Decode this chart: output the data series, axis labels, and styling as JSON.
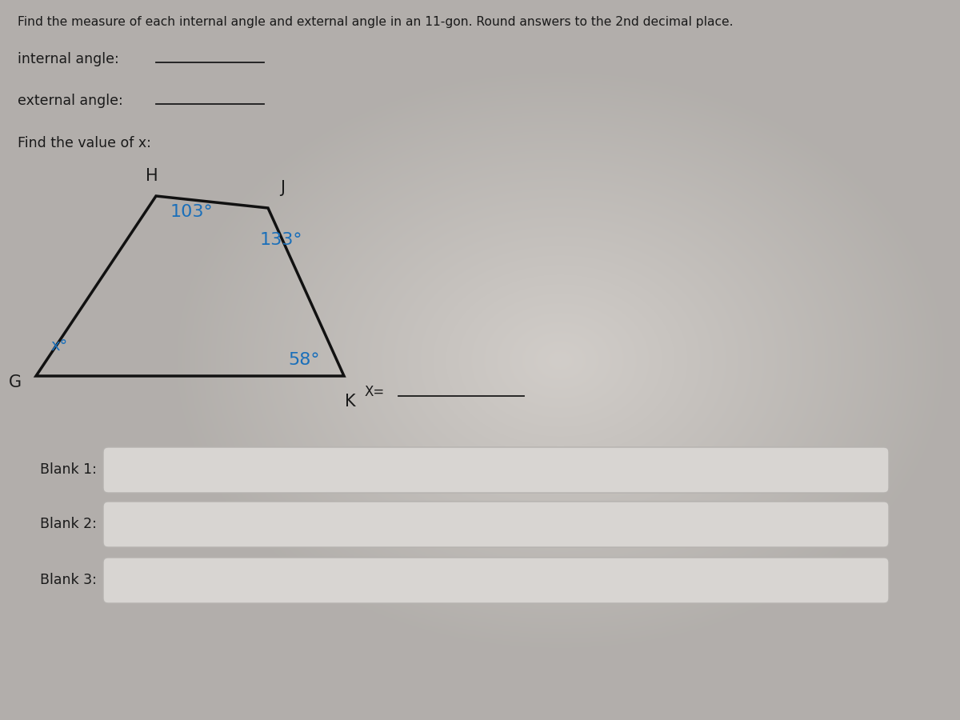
{
  "title_text": "Find the measure of each internal angle and external angle in an 11-gon. Round answers to the 2nd decimal place.",
  "angle_103": "103°",
  "angle_133": "133°",
  "angle_58": "58°",
  "angle_x": "x°",
  "label_H": "H",
  "label_J": "J",
  "label_G": "G",
  "label_K": "K",
  "x_eq": "X=",
  "blank1": "Blank 1:",
  "blank2": "Blank 2:",
  "blank3": "Blank 3:",
  "internal_label": "internal angle:",
  "external_label": "external angle:",
  "find_x_label": "Find the value of x:",
  "angle_color": "#1a6fba",
  "text_color": "#1a1a1a",
  "bg_color_outer": "#b8b0b0",
  "bg_color_inner": "#d0ccc8",
  "box_face": "#d8d5d2",
  "box_edge": "#b5b2af"
}
